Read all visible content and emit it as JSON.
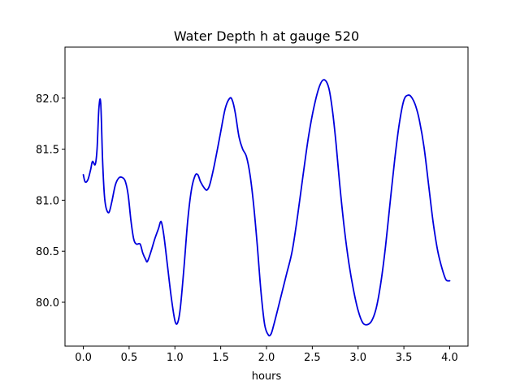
{
  "chart_data": {
    "type": "line",
    "title": "Water Depth h at gauge 520",
    "xlabel": "hours",
    "ylabel": "",
    "xlim": [
      -0.2,
      4.2
    ],
    "ylim": [
      79.57,
      82.5
    ],
    "xticks": [
      0.0,
      0.5,
      1.0,
      1.5,
      2.0,
      2.5,
      3.0,
      3.5,
      4.0
    ],
    "xtick_labels": [
      "0.0",
      "0.5",
      "1.0",
      "1.5",
      "2.0",
      "2.5",
      "3.0",
      "3.5",
      "4.0"
    ],
    "yticks": [
      80.0,
      80.5,
      81.0,
      81.5,
      82.0
    ],
    "ytick_labels": [
      "80.0",
      "80.5",
      "81.0",
      "81.5",
      "82.0"
    ],
    "grid": false,
    "series": [
      {
        "color": "#0000dd",
        "x": [
          0.0,
          0.02,
          0.05,
          0.08,
          0.1,
          0.13,
          0.15,
          0.17,
          0.19,
          0.21,
          0.23,
          0.25,
          0.28,
          0.31,
          0.35,
          0.39,
          0.43,
          0.46,
          0.49,
          0.52,
          0.55,
          0.58,
          0.62,
          0.65,
          0.68,
          0.7,
          0.74,
          0.78,
          0.82,
          0.85,
          0.88,
          0.92,
          0.96,
          1.0,
          1.03,
          1.06,
          1.1,
          1.14,
          1.18,
          1.22,
          1.25,
          1.28,
          1.32,
          1.35,
          1.38,
          1.42,
          1.46,
          1.5,
          1.55,
          1.6,
          1.63,
          1.66,
          1.7,
          1.74,
          1.78,
          1.82,
          1.86,
          1.9,
          1.94,
          1.98,
          2.02,
          2.05,
          2.08,
          2.12,
          2.17,
          2.22,
          2.28,
          2.34,
          2.4,
          2.46,
          2.52,
          2.58,
          2.63,
          2.68,
          2.72,
          2.76,
          2.8,
          2.85,
          2.9,
          2.95,
          3.0,
          3.05,
          3.1,
          3.15,
          3.2,
          3.25,
          3.3,
          3.35,
          3.4,
          3.45,
          3.5,
          3.55,
          3.59,
          3.63,
          3.67,
          3.72,
          3.77,
          3.82,
          3.87,
          3.92,
          3.96,
          4.0
        ],
        "y": [
          81.25,
          81.18,
          81.2,
          81.3,
          81.38,
          81.35,
          81.5,
          81.9,
          81.95,
          81.4,
          81.05,
          80.92,
          80.88,
          80.98,
          81.15,
          81.22,
          81.22,
          81.18,
          81.05,
          80.8,
          80.62,
          80.57,
          80.57,
          80.48,
          80.42,
          80.4,
          80.5,
          80.62,
          80.72,
          80.79,
          80.65,
          80.35,
          80.05,
          79.82,
          79.8,
          79.95,
          80.35,
          80.8,
          81.1,
          81.24,
          81.25,
          81.18,
          81.12,
          81.1,
          81.15,
          81.3,
          81.48,
          81.67,
          81.9,
          82.0,
          81.97,
          81.85,
          81.62,
          81.5,
          81.43,
          81.25,
          80.95,
          80.55,
          80.1,
          79.78,
          79.68,
          79.69,
          79.78,
          79.92,
          80.1,
          80.28,
          80.5,
          80.85,
          81.25,
          81.63,
          81.92,
          82.12,
          82.18,
          82.1,
          81.88,
          81.55,
          81.15,
          80.72,
          80.38,
          80.12,
          79.92,
          79.8,
          79.78,
          79.82,
          79.95,
          80.2,
          80.55,
          80.98,
          81.4,
          81.75,
          81.98,
          82.03,
          82.0,
          81.92,
          81.78,
          81.52,
          81.15,
          80.78,
          80.5,
          80.32,
          80.22,
          80.21
        ]
      }
    ]
  }
}
